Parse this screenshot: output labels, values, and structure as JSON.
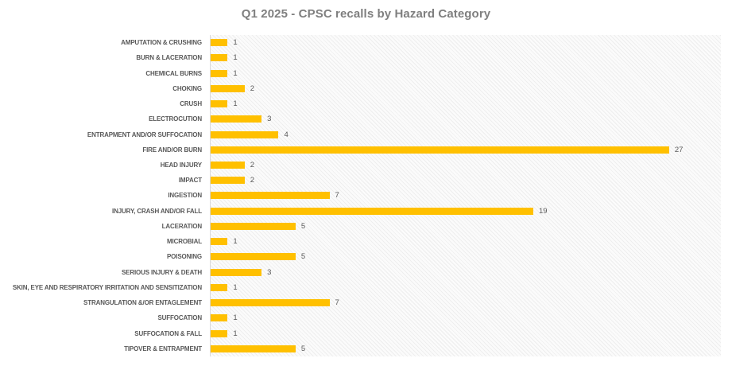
{
  "chart": {
    "title_color": "#7f7f7f",
    "bar_color": "#FFC000",
    "axis_line_color": "#d9d9d9",
    "label_color": "#595959",
    "value_color": "#595959",
    "plot_background": "hatched-light-gray"
  },
  "chart_data": {
    "type": "bar",
    "orientation": "horizontal",
    "title": "Q1 2025 - CPSC recalls by Hazard Category",
    "categories": [
      "AMPUTATION & CRUSHING",
      "BURN & LACERATION",
      "CHEMICAL BURNS",
      "CHOKING",
      "CRUSH",
      "ELECTROCUTION",
      "ENTRAPMENT AND/OR SUFFOCATION",
      "FIRE AND/OR BURN",
      "HEAD INJURY",
      "IMPACT",
      "INGESTION",
      "INJURY, CRASH AND/OR FALL",
      "LACERATION",
      "MICROBIAL",
      "POISONING",
      "SERIOUS INJURY & DEATH",
      "SKIN, EYE AND RESPIRATORY IRRITATION AND SENSITIZATION",
      "STRANGULATION &/OR ENTAGLEMENT",
      "SUFFOCATION",
      "SUFFOCATION & FALL",
      "TIPOVER & ENTRAPMENT"
    ],
    "values": [
      1,
      1,
      1,
      2,
      1,
      3,
      4,
      27,
      2,
      2,
      7,
      19,
      5,
      1,
      5,
      3,
      1,
      7,
      1,
      1,
      5
    ],
    "xlabel": "",
    "ylabel": "",
    "xlim": [
      0,
      30
    ],
    "grid": false,
    "legend": false,
    "data_labels": true
  }
}
